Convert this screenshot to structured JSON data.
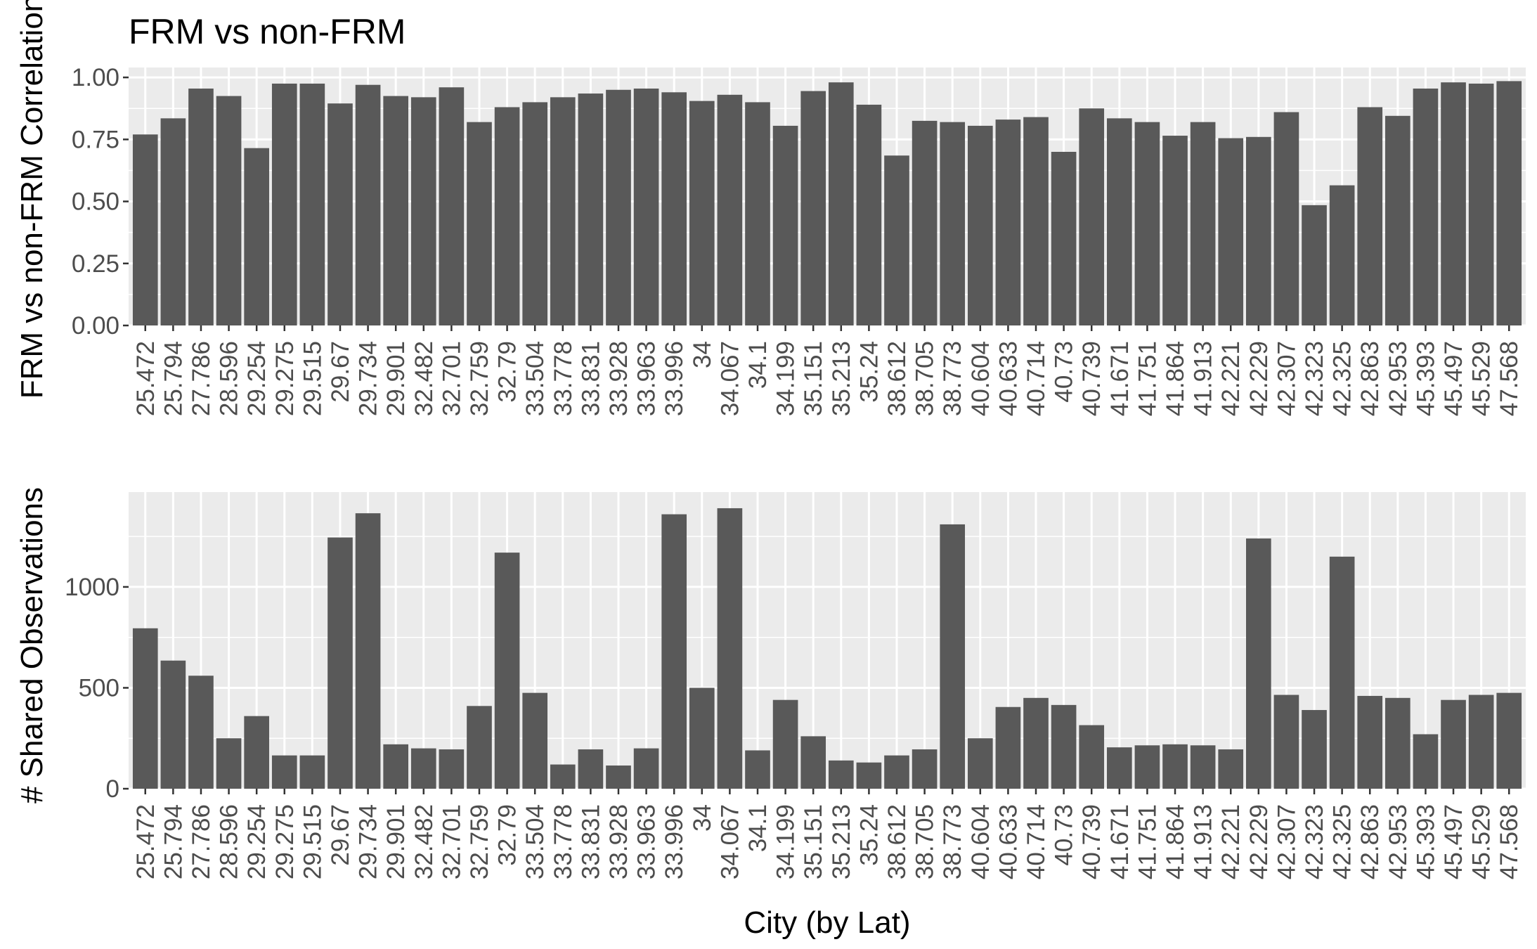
{
  "chart_data": [
    {
      "type": "bar",
      "title": "FRM vs non-FRM",
      "xlabel": "",
      "ylabel": "FRM vs non-FRM Correlation",
      "ylim": [
        0,
        1.04
      ],
      "yticks": [
        0,
        0.25,
        0.5,
        0.75,
        1.0
      ],
      "ytick_labels": [
        "0.00",
        "0.25",
        "0.50",
        "0.75",
        "1.00"
      ],
      "grid": true,
      "bar_color": "#595959",
      "categories": [
        "25.472",
        "25.794",
        "27.786",
        "28.596",
        "29.254",
        "29.275",
        "29.515",
        "29.67",
        "29.734",
        "29.901",
        "32.482",
        "32.701",
        "32.759",
        "32.79",
        "33.504",
        "33.778",
        "33.831",
        "33.928",
        "33.963",
        "33.996",
        "34",
        "34.067",
        "34.1",
        "34.199",
        "35.151",
        "35.213",
        "35.24",
        "38.612",
        "38.705",
        "38.773",
        "40.604",
        "40.633",
        "40.714",
        "40.73",
        "40.739",
        "41.671",
        "41.751",
        "41.864",
        "41.913",
        "42.221",
        "42.229",
        "42.307",
        "42.323",
        "42.325",
        "42.863",
        "42.953",
        "45.393",
        "45.497",
        "45.529",
        "47.568"
      ],
      "values": [
        0.77,
        0.835,
        0.955,
        0.925,
        0.715,
        0.975,
        0.975,
        0.895,
        0.97,
        0.925,
        0.92,
        0.96,
        0.82,
        0.88,
        0.9,
        0.92,
        0.935,
        0.95,
        0.955,
        0.94,
        0.905,
        0.93,
        0.9,
        0.805,
        0.945,
        0.98,
        0.89,
        0.685,
        0.825,
        0.82,
        0.805,
        0.83,
        0.84,
        0.7,
        0.875,
        0.835,
        0.82,
        0.765,
        0.82,
        0.755,
        0.76,
        0.86,
        0.485,
        0.565,
        0.88,
        0.845,
        0.955,
        0.98,
        0.975,
        0.985
      ]
    },
    {
      "type": "bar",
      "title": "",
      "xlabel": "City (by Lat)",
      "ylabel": "# Shared Observations",
      "ylim": [
        0,
        1470
      ],
      "yticks": [
        0,
        500,
        1000
      ],
      "ytick_labels": [
        "0",
        "500",
        "1000"
      ],
      "grid": true,
      "bar_color": "#595959",
      "categories": [
        "25.472",
        "25.794",
        "27.786",
        "28.596",
        "29.254",
        "29.275",
        "29.515",
        "29.67",
        "29.734",
        "29.901",
        "32.482",
        "32.701",
        "32.759",
        "32.79",
        "33.504",
        "33.778",
        "33.831",
        "33.928",
        "33.963",
        "33.996",
        "34",
        "34.067",
        "34.1",
        "34.199",
        "35.151",
        "35.213",
        "35.24",
        "38.612",
        "38.705",
        "38.773",
        "40.604",
        "40.633",
        "40.714",
        "40.73",
        "40.739",
        "41.671",
        "41.751",
        "41.864",
        "41.913",
        "42.221",
        "42.229",
        "42.307",
        "42.323",
        "42.325",
        "42.863",
        "42.953",
        "45.393",
        "45.497",
        "45.529",
        "47.568"
      ],
      "values": [
        795,
        635,
        560,
        250,
        360,
        165,
        165,
        1245,
        1365,
        220,
        200,
        195,
        410,
        1170,
        475,
        120,
        195,
        115,
        200,
        1360,
        500,
        1390,
        190,
        440,
        260,
        140,
        130,
        165,
        195,
        1310,
        250,
        405,
        450,
        415,
        315,
        205,
        215,
        220,
        215,
        195,
        1240,
        465,
        390,
        1150,
        460,
        450,
        270,
        440,
        465,
        475
      ]
    }
  ]
}
